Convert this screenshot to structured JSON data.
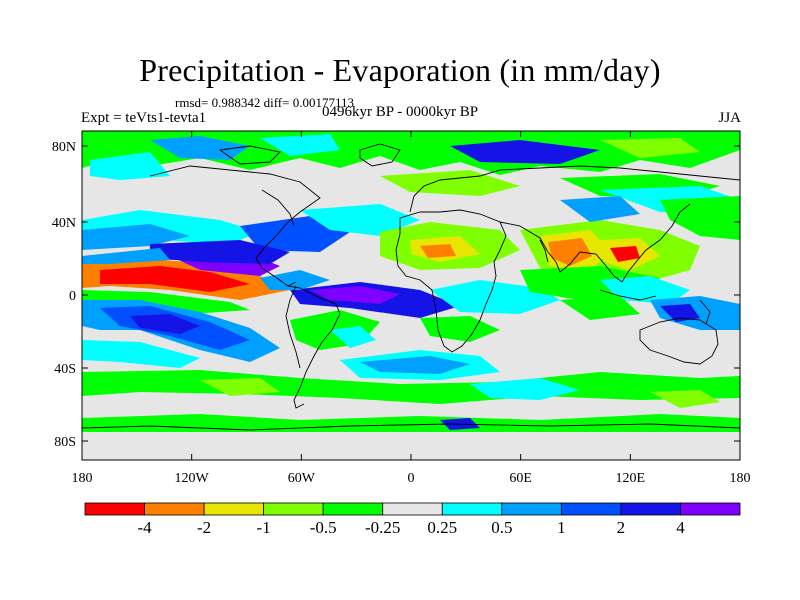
{
  "title": "Precipitation - Evaporation (in mm/day)",
  "stats": "rmsd= 0.988342  diff= 0.00177113",
  "experiment": "Expt = teVts1-tevta1",
  "period": "0496kyr BP - 0000kyr BP",
  "season": "JJA",
  "axes": {
    "x_ticks": [
      "180",
      "120W",
      "60W",
      "0",
      "60E",
      "120E",
      "180"
    ],
    "y_ticks": [
      "80N",
      "40N",
      "0",
      "40S",
      "80S"
    ]
  },
  "colorbar": {
    "labels": [
      "-4",
      "-2",
      "-1",
      "-0.5",
      "-0.25",
      "0.25",
      "0.5",
      "1",
      "2",
      "4"
    ],
    "colors": [
      "#ff0000",
      "#ff8000",
      "#e6e600",
      "#80ff00",
      "#00ff00",
      "#e6e6e6",
      "#00ffff",
      "#00a0ff",
      "#0050ff",
      "#1414e6",
      "#8000ff"
    ]
  },
  "colors": {
    "neutral": "#e6e6e6",
    "coast": "#000000"
  }
}
